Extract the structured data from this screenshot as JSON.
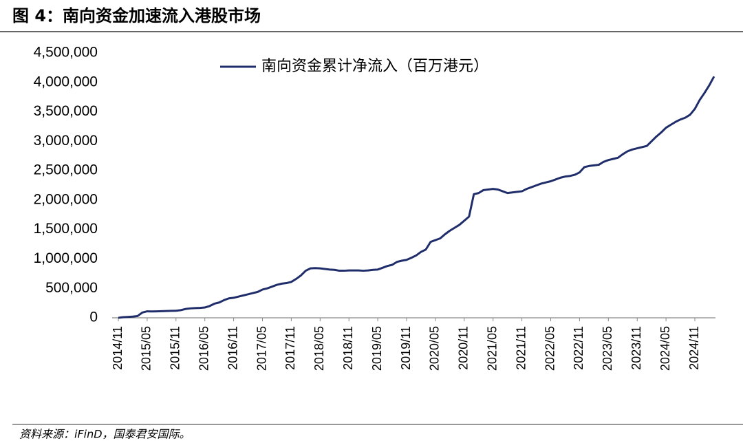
{
  "chart_data": {
    "type": "line",
    "title": "图 4：南向资金加速流入港股市场",
    "source": "资料来源：iFinD，国泰君安国际。",
    "x": [
      "2014/11",
      "2014/12",
      "2015/01",
      "2015/02",
      "2015/03",
      "2015/04",
      "2015/05",
      "2015/06",
      "2015/07",
      "2015/08",
      "2015/09",
      "2015/10",
      "2015/11",
      "2015/12",
      "2016/01",
      "2016/02",
      "2016/03",
      "2016/04",
      "2016/05",
      "2016/06",
      "2016/07",
      "2016/08",
      "2016/09",
      "2016/10",
      "2016/11",
      "2016/12",
      "2017/01",
      "2017/02",
      "2017/03",
      "2017/04",
      "2017/05",
      "2017/06",
      "2017/07",
      "2017/08",
      "2017/09",
      "2017/10",
      "2017/11",
      "2017/12",
      "2018/01",
      "2018/02",
      "2018/03",
      "2018/04",
      "2018/05",
      "2018/06",
      "2018/07",
      "2018/08",
      "2018/09",
      "2018/10",
      "2018/11",
      "2018/12",
      "2019/01",
      "2019/02",
      "2019/03",
      "2019/04",
      "2019/05",
      "2019/06",
      "2019/07",
      "2019/08",
      "2019/09",
      "2019/10",
      "2019/11",
      "2019/12",
      "2020/01",
      "2020/02",
      "2020/03",
      "2020/04",
      "2020/05",
      "2020/06",
      "2020/07",
      "2020/08",
      "2020/09",
      "2020/10",
      "2020/11",
      "2020/12",
      "2021/01",
      "2021/02",
      "2021/03",
      "2021/04",
      "2021/05",
      "2021/06",
      "2021/07",
      "2021/08",
      "2021/09",
      "2021/10",
      "2021/11",
      "2021/12",
      "2022/01",
      "2022/02",
      "2022/03",
      "2022/04",
      "2022/05",
      "2022/06",
      "2022/07",
      "2022/08",
      "2022/09",
      "2022/10",
      "2022/11",
      "2022/12",
      "2023/01",
      "2023/02",
      "2023/03",
      "2023/04",
      "2023/05",
      "2023/06",
      "2023/07",
      "2023/08",
      "2023/09",
      "2023/10",
      "2023/11",
      "2023/12",
      "2024/01",
      "2024/02",
      "2024/03",
      "2024/04",
      "2024/05",
      "2024/06",
      "2024/07",
      "2024/08",
      "2024/09",
      "2024/10",
      "2024/11",
      "2024/12",
      "2025/01",
      "2025/02",
      "2025/03"
    ],
    "series": [
      {
        "name": "南向资金累计净流入（百万港元）",
        "color": "#1f2d6b",
        "values": [
          0,
          10000,
          15000,
          20000,
          30000,
          90000,
          110000,
          108000,
          110000,
          112000,
          115000,
          118000,
          120000,
          130000,
          150000,
          160000,
          165000,
          168000,
          175000,
          200000,
          240000,
          260000,
          300000,
          330000,
          340000,
          360000,
          380000,
          400000,
          420000,
          440000,
          480000,
          500000,
          530000,
          560000,
          580000,
          590000,
          610000,
          660000,
          720000,
          800000,
          840000,
          845000,
          840000,
          830000,
          820000,
          815000,
          800000,
          800000,
          805000,
          805000,
          805000,
          800000,
          805000,
          815000,
          820000,
          850000,
          880000,
          900000,
          950000,
          970000,
          985000,
          1020000,
          1060000,
          1120000,
          1160000,
          1290000,
          1320000,
          1350000,
          1420000,
          1480000,
          1530000,
          1580000,
          1650000,
          1720000,
          2100000,
          2120000,
          2170000,
          2180000,
          2190000,
          2180000,
          2150000,
          2120000,
          2130000,
          2140000,
          2150000,
          2190000,
          2220000,
          2250000,
          2280000,
          2300000,
          2320000,
          2350000,
          2380000,
          2400000,
          2410000,
          2430000,
          2470000,
          2560000,
          2580000,
          2590000,
          2600000,
          2650000,
          2680000,
          2700000,
          2720000,
          2780000,
          2830000,
          2860000,
          2880000,
          2900000,
          2920000,
          3000000,
          3080000,
          3150000,
          3230000,
          3280000,
          3330000,
          3370000,
          3400000,
          3450000,
          3550000,
          3700000,
          3820000,
          3950000,
          4100000
        ]
      }
    ],
    "xticks": [
      "2014/11",
      "2015/05",
      "2015/11",
      "2016/05",
      "2016/11",
      "2017/05",
      "2017/11",
      "2018/05",
      "2018/11",
      "2019/05",
      "2019/11",
      "2020/05",
      "2020/11",
      "2021/05",
      "2021/11",
      "2022/05",
      "2022/11",
      "2023/05",
      "2023/11",
      "2024/05",
      "2024/11"
    ],
    "ylim": [
      0,
      4500000
    ],
    "yticks": [
      0,
      {
        "value": 500000,
        "label": "500,000"
      },
      {
        "value": 1000000,
        "label": "1,000,000"
      },
      {
        "value": 1500000,
        "label": "1,500,000"
      },
      {
        "value": 2000000,
        "label": "2,000,000"
      },
      {
        "value": 2500000,
        "label": "2,500,000"
      },
      {
        "value": 3000000,
        "label": "3,000,000"
      },
      {
        "value": 3500000,
        "label": "3,500,000"
      },
      {
        "value": 4000000,
        "label": "4,000,000"
      },
      {
        "value": 4500000,
        "label": "4,500,000"
      }
    ],
    "grid": false,
    "legend": "top"
  }
}
